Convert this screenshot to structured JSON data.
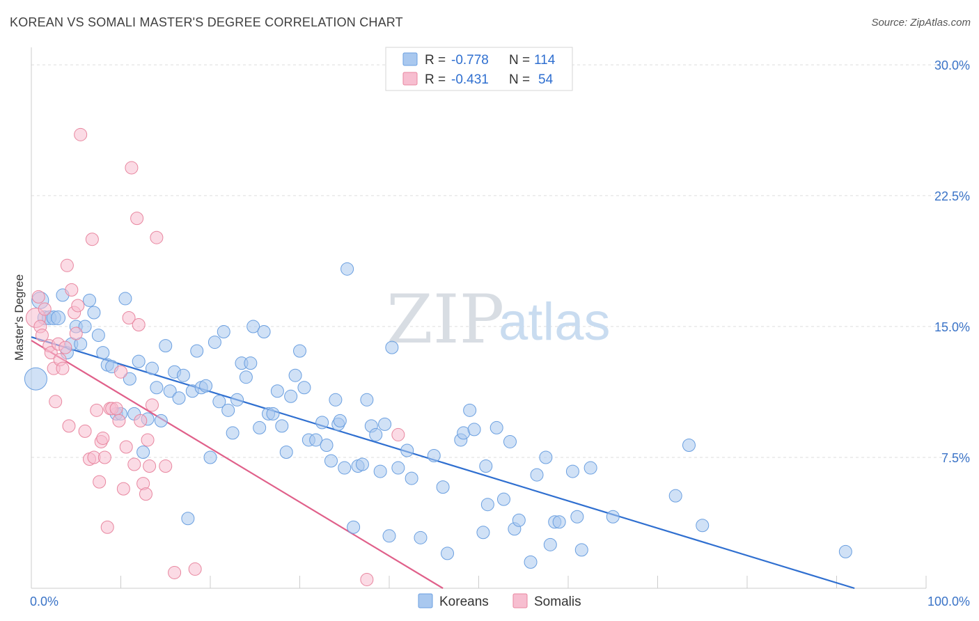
{
  "header": {
    "title": "KOREAN VS SOMALI MASTER'S DEGREE CORRELATION CHART",
    "source": "Source: ZipAtlas.com"
  },
  "watermark": {
    "zip": "ZIP",
    "atlas": "atlas"
  },
  "legend": {
    "korean": {
      "r_label": "R =",
      "r_value": "-0.778",
      "n_label": "N =",
      "n_value": "114",
      "color": "#a9c8ef"
    },
    "somali": {
      "r_label": "R =",
      "r_value": "-0.431",
      "n_label": "N =",
      "n_value": "54",
      "color": "#f7bed0"
    }
  },
  "bottom_legend": {
    "korean": "Koreans",
    "somali": "Somalis"
  },
  "chart_data": {
    "type": "scatter",
    "title": "KOREAN VS SOMALI MASTER'S DEGREE CORRELATION CHART",
    "xlabel": "",
    "ylabel": "Master's Degree",
    "xlim": [
      0,
      100
    ],
    "ylim": [
      0,
      31
    ],
    "x_tick_labels": [
      "0.0%",
      "100.0%"
    ],
    "y_ticks": [
      {
        "value": 7.5,
        "label": "7.5%"
      },
      {
        "value": 15.0,
        "label": "15.0%"
      },
      {
        "value": 22.5,
        "label": "22.5%"
      },
      {
        "value": 30.0,
        "label": "30.0%"
      }
    ],
    "grid": true,
    "legend_position": "top-center",
    "series": [
      {
        "name": "Koreans",
        "color": "#6a9fe0",
        "fill": "#a9c8ef",
        "trend": {
          "x0": 0,
          "y0": 14.4,
          "x1": 92,
          "y1": 0
        },
        "points": [
          [
            0.5,
            12.0,
            16
          ],
          [
            1.0,
            16.5,
            12
          ],
          [
            1.5,
            15.5,
            10
          ],
          [
            2.0,
            15.5,
            10
          ],
          [
            2.5,
            15.5,
            10
          ],
          [
            3.0,
            15.5,
            10
          ],
          [
            3.5,
            16.8,
            9
          ],
          [
            4.0,
            13.5,
            9
          ],
          [
            4.5,
            14.0,
            9
          ],
          [
            5.0,
            15.0,
            9
          ],
          [
            5.5,
            14.0,
            9
          ],
          [
            6.0,
            15.0,
            9
          ],
          [
            6.5,
            16.5,
            9
          ],
          [
            7.0,
            15.8,
            9
          ],
          [
            7.5,
            14.5,
            9
          ],
          [
            8.0,
            13.5,
            9
          ],
          [
            8.5,
            12.8,
            9
          ],
          [
            9.0,
            12.7,
            9
          ],
          [
            9.5,
            10.0,
            9
          ],
          [
            10.0,
            10.0,
            9
          ],
          [
            10.5,
            16.6,
            9
          ],
          [
            11.0,
            12.0,
            9
          ],
          [
            11.5,
            10.0,
            9
          ],
          [
            12.0,
            13.0,
            9
          ],
          [
            12.5,
            7.8,
            9
          ],
          [
            13.0,
            9.7,
            9
          ],
          [
            13.5,
            12.6,
            9
          ],
          [
            14.0,
            11.5,
            9
          ],
          [
            14.5,
            9.6,
            9
          ],
          [
            15.0,
            13.9,
            9
          ],
          [
            15.5,
            11.3,
            9
          ],
          [
            16.0,
            12.4,
            9
          ],
          [
            16.5,
            10.9,
            9
          ],
          [
            17.0,
            12.2,
            9
          ],
          [
            17.5,
            4.0,
            9
          ],
          [
            18.0,
            11.3,
            9
          ],
          [
            18.5,
            13.6,
            9
          ],
          [
            19.0,
            11.5,
            9
          ],
          [
            19.5,
            11.6,
            9
          ],
          [
            20.0,
            7.5,
            9
          ],
          [
            20.5,
            14.1,
            9
          ],
          [
            21.0,
            10.7,
            9
          ],
          [
            21.5,
            14.7,
            9
          ],
          [
            22.0,
            10.2,
            9
          ],
          [
            22.5,
            8.9,
            9
          ],
          [
            23.0,
            10.8,
            9
          ],
          [
            23.5,
            12.9,
            9
          ],
          [
            24.0,
            12.1,
            9
          ],
          [
            24.5,
            12.9,
            9
          ],
          [
            24.8,
            15.0,
            9
          ],
          [
            25.5,
            9.2,
            9
          ],
          [
            26.0,
            14.7,
            9
          ],
          [
            26.5,
            10.0,
            9
          ],
          [
            27.0,
            10.0,
            9
          ],
          [
            27.5,
            11.3,
            9
          ],
          [
            28.0,
            9.3,
            9
          ],
          [
            28.5,
            7.8,
            9
          ],
          [
            29.0,
            11.0,
            9
          ],
          [
            29.5,
            12.2,
            9
          ],
          [
            30.0,
            13.6,
            9
          ],
          [
            30.5,
            11.5,
            9
          ],
          [
            31.0,
            8.5,
            9
          ],
          [
            31.8,
            8.5,
            9
          ],
          [
            32.5,
            9.5,
            9
          ],
          [
            33.0,
            8.2,
            9
          ],
          [
            33.5,
            7.3,
            9
          ],
          [
            34.0,
            10.8,
            9
          ],
          [
            34.3,
            9.4,
            9
          ],
          [
            34.5,
            9.6,
            9
          ],
          [
            35.0,
            6.9,
            9
          ],
          [
            35.3,
            18.3,
            9
          ],
          [
            36.0,
            3.5,
            9
          ],
          [
            36.5,
            7.0,
            9
          ],
          [
            37.0,
            7.1,
            9
          ],
          [
            37.5,
            10.8,
            9
          ],
          [
            38.0,
            9.3,
            9
          ],
          [
            38.5,
            8.8,
            9
          ],
          [
            39.0,
            6.7,
            9
          ],
          [
            39.5,
            9.4,
            9
          ],
          [
            40.0,
            3.0,
            9
          ],
          [
            40.3,
            13.8,
            9
          ],
          [
            41.0,
            6.9,
            9
          ],
          [
            42.0,
            7.9,
            9
          ],
          [
            42.5,
            6.3,
            9
          ],
          [
            43.5,
            2.9,
            9
          ],
          [
            45.0,
            7.6,
            9
          ],
          [
            46.0,
            5.8,
            9
          ],
          [
            46.5,
            2.0,
            9
          ],
          [
            48.0,
            8.5,
            9
          ],
          [
            48.3,
            8.9,
            9
          ],
          [
            49.0,
            10.2,
            9
          ],
          [
            49.5,
            9.1,
            9
          ],
          [
            50.5,
            3.2,
            9
          ],
          [
            50.8,
            7.0,
            9
          ],
          [
            51.0,
            4.8,
            9
          ],
          [
            52.0,
            9.2,
            9
          ],
          [
            52.8,
            5.1,
            9
          ],
          [
            53.5,
            8.4,
            9
          ],
          [
            54.0,
            3.4,
            9
          ],
          [
            54.5,
            3.9,
            9
          ],
          [
            55.8,
            1.5,
            9
          ],
          [
            56.5,
            6.5,
            9
          ],
          [
            57.5,
            7.5,
            9
          ],
          [
            58.0,
            2.5,
            9
          ],
          [
            58.5,
            3.8,
            9
          ],
          [
            59.0,
            3.8,
            9
          ],
          [
            60.5,
            6.7,
            9
          ],
          [
            61.0,
            4.1,
            9
          ],
          [
            61.5,
            2.2,
            9
          ],
          [
            62.5,
            6.9,
            9
          ],
          [
            65.0,
            4.1,
            9
          ],
          [
            72.0,
            5.3,
            9
          ],
          [
            73.5,
            8.2,
            9
          ],
          [
            75.0,
            3.6,
            9
          ],
          [
            91.0,
            2.1,
            9
          ]
        ]
      },
      {
        "name": "Somalis",
        "color": "#e8869f",
        "fill": "#f7bed0",
        "trend": {
          "x0": 0,
          "y0": 14.2,
          "x1": 46,
          "y1": 0
        },
        "points": [
          [
            0.5,
            15.5,
            14
          ],
          [
            0.8,
            16.7,
            9
          ],
          [
            1.0,
            15.0,
            9
          ],
          [
            1.2,
            14.5,
            9
          ],
          [
            1.5,
            16.0,
            9
          ],
          [
            2.0,
            13.9,
            9
          ],
          [
            2.2,
            13.5,
            9
          ],
          [
            2.5,
            12.6,
            9
          ],
          [
            2.7,
            10.7,
            9
          ],
          [
            3.0,
            14.0,
            9
          ],
          [
            3.2,
            13.1,
            9
          ],
          [
            3.5,
            12.6,
            9
          ],
          [
            3.8,
            13.8,
            9
          ],
          [
            4.0,
            18.5,
            9
          ],
          [
            4.2,
            9.3,
            9
          ],
          [
            4.5,
            17.1,
            9
          ],
          [
            4.8,
            15.8,
            9
          ],
          [
            5.0,
            14.6,
            9
          ],
          [
            5.2,
            16.2,
            9
          ],
          [
            5.5,
            26.0,
            9
          ],
          [
            6.0,
            9.0,
            9
          ],
          [
            6.5,
            7.4,
            9
          ],
          [
            6.8,
            20.0,
            9
          ],
          [
            7.0,
            7.5,
            9
          ],
          [
            7.3,
            10.2,
            9
          ],
          [
            7.6,
            6.1,
            9
          ],
          [
            7.8,
            8.4,
            9
          ],
          [
            8.0,
            8.6,
            9
          ],
          [
            8.2,
            7.5,
            9
          ],
          [
            8.5,
            3.5,
            9
          ],
          [
            8.8,
            10.3,
            9
          ],
          [
            9.0,
            10.3,
            9
          ],
          [
            9.5,
            10.3,
            9
          ],
          [
            9.8,
            9.6,
            9
          ],
          [
            10.0,
            12.4,
            9
          ],
          [
            10.3,
            5.7,
            9
          ],
          [
            10.6,
            8.1,
            9
          ],
          [
            10.9,
            15.5,
            9
          ],
          [
            11.2,
            24.1,
            9
          ],
          [
            11.5,
            7.1,
            9
          ],
          [
            11.8,
            21.2,
            9
          ],
          [
            12.0,
            15.1,
            9
          ],
          [
            12.2,
            9.6,
            9
          ],
          [
            12.5,
            6.0,
            9
          ],
          [
            12.8,
            5.4,
            9
          ],
          [
            13.0,
            8.5,
            9
          ],
          [
            13.2,
            7.0,
            9
          ],
          [
            13.5,
            10.5,
            9
          ],
          [
            14.0,
            20.1,
            9
          ],
          [
            15.0,
            7.0,
            9
          ],
          [
            16.0,
            0.9,
            9
          ],
          [
            18.3,
            1.1,
            9
          ],
          [
            37.5,
            0.5,
            9
          ],
          [
            41.0,
            8.8,
            9
          ]
        ]
      }
    ]
  }
}
